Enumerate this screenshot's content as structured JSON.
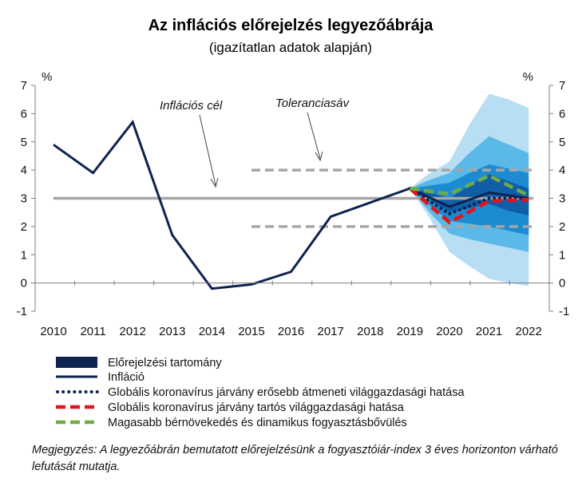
{
  "chart_data": {
    "type": "line",
    "title": "Az inflációs előrejelzés legyezőábrája",
    "subtitle": "(igazítatlan adatok alapján)",
    "ylabel_left": "%",
    "ylabel_right": "%",
    "ylim": [
      -1,
      7
    ],
    "yticks": [
      -1,
      0,
      1,
      2,
      3,
      4,
      5,
      6,
      7
    ],
    "x_labels": [
      "2010",
      "2011",
      "2012",
      "2013",
      "2014",
      "2015",
      "2016",
      "2017",
      "2018",
      "2019",
      "2020",
      "2021",
      "2022"
    ],
    "inflation_target": 3,
    "tolerance_band": [
      2,
      4
    ],
    "inflation": {
      "name": "Infláció",
      "points": [
        [
          0.0,
          4.9
        ],
        [
          1.0,
          3.9
        ],
        [
          2.0,
          5.7
        ],
        [
          3.0,
          1.7
        ],
        [
          4.0,
          -0.2
        ],
        [
          5.0,
          -0.05
        ],
        [
          6.0,
          0.4
        ],
        [
          7.0,
          2.35
        ],
        [
          8.0,
          2.85
        ],
        [
          9.0,
          3.35
        ],
        [
          10.0,
          2.7
        ],
        [
          11.0,
          3.2
        ],
        [
          12.0,
          3.0
        ]
      ]
    },
    "fan": {
      "name": "Előrejelzési tartomány",
      "x": [
        9.0,
        9.5,
        10.0,
        10.5,
        11.0,
        11.5,
        12.0
      ],
      "bands": [
        {
          "lower": [
            3.35,
            2.3,
            1.1,
            0.6,
            0.15,
            0.0,
            -0.1
          ],
          "upper": [
            3.35,
            3.9,
            4.3,
            5.6,
            6.7,
            6.5,
            6.2
          ],
          "color": "#b8def3"
        },
        {
          "lower": [
            3.35,
            2.5,
            1.75,
            1.55,
            1.4,
            1.25,
            1.1
          ],
          "upper": [
            3.35,
            3.65,
            3.9,
            4.6,
            5.2,
            4.9,
            4.6
          ],
          "color": "#5ab9e8"
        },
        {
          "lower": [
            3.35,
            2.75,
            2.2,
            2.1,
            2.0,
            1.85,
            1.7
          ],
          "upper": [
            3.35,
            3.45,
            3.55,
            3.9,
            4.2,
            4.05,
            3.9
          ],
          "color": "#1d8bd2"
        },
        {
          "lower": [
            3.35,
            2.95,
            2.5,
            2.65,
            2.8,
            2.55,
            2.4
          ],
          "upper": [
            3.35,
            3.2,
            3.0,
            3.45,
            3.85,
            3.6,
            3.35
          ],
          "color": "#0f5ea6"
        }
      ]
    },
    "scenarios": [
      {
        "name": "Globális koronavírus járvány erősebb átmeneti világgazdasági hatása",
        "style": "dotted",
        "color": "#0d2350",
        "points": [
          [
            9.0,
            3.35
          ],
          [
            10.0,
            2.45
          ],
          [
            11.0,
            3.0
          ],
          [
            12.0,
            3.0
          ]
        ]
      },
      {
        "name": "Globális koronavírus járvány tartós világgazdasági hatása",
        "style": "dashed",
        "color": "#e8121a",
        "points": [
          [
            9.0,
            3.35
          ],
          [
            10.0,
            2.15
          ],
          [
            11.0,
            2.9
          ],
          [
            12.0,
            2.95
          ]
        ]
      },
      {
        "name": "Magasabb bérnövekedés és dinamikus fogyasztásbővülés",
        "style": "dashed",
        "color": "#6fac47",
        "points": [
          [
            9.0,
            3.35
          ],
          [
            10.0,
            3.15
          ],
          [
            11.0,
            3.8
          ],
          [
            12.0,
            3.1
          ]
        ]
      }
    ],
    "annotations": [
      "Inflációs cél",
      "Toleranciasáv"
    ],
    "legend": [
      {
        "label": "Előrejelzési tartomány",
        "kind": "fan"
      },
      {
        "label": "Infláció",
        "kind": "line"
      },
      {
        "label": "Globális koronavírus járvány erősebb átmeneti világgazdasági hatása",
        "kind": "dotted"
      },
      {
        "label": "Globális koronavírus járvány tartós világgazdasági hatása",
        "kind": "dashed-red"
      },
      {
        "label": "Magasabb bérnövekedés és dinamikus fogyasztásbővülés",
        "kind": "dashed-green"
      }
    ],
    "colors": {
      "inflation": "#0d2350",
      "target": "#a6a6a6",
      "tolerance": "#a6a6a6",
      "axis": "#7f7f7f"
    }
  },
  "note": "Megjegyzés: A legyezőábrán bemutatott előrejelzésünk a fogyasztóiár-index 3 éves horizonton várható lefutását mutatja."
}
